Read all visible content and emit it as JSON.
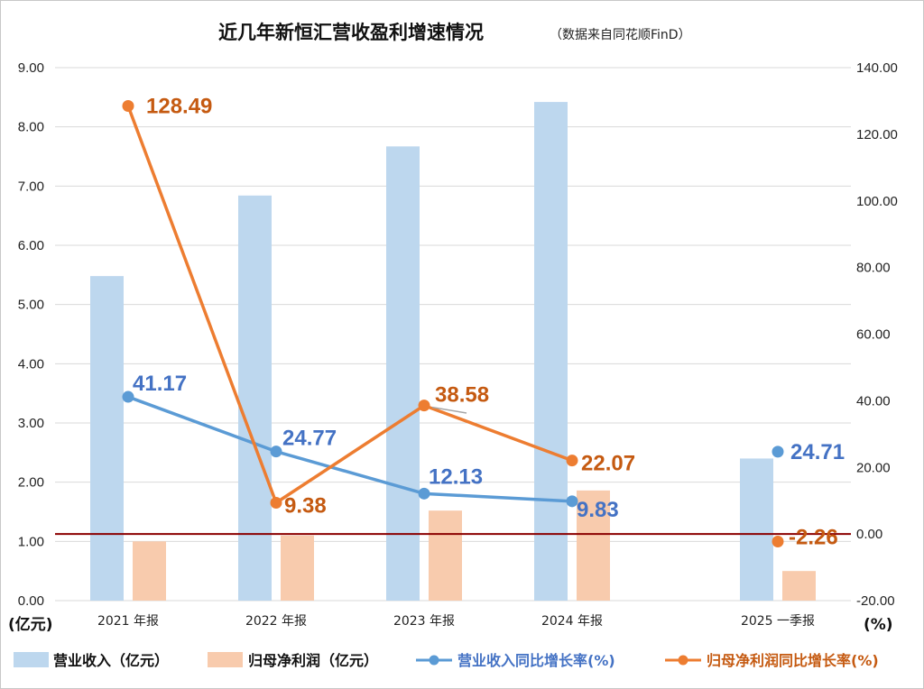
{
  "chart_data": {
    "type": "bar+line",
    "title": "近几年新恒汇营收盈利增速情况",
    "subtitle": "（数据来自同花顺FinD）",
    "categories": [
      "2021 年报",
      "2022 年报",
      "2023 年报",
      "2024 年报",
      "2025 一季报"
    ],
    "bar_series": [
      {
        "name": "营业收入（亿元）",
        "values": [
          5.48,
          6.84,
          7.67,
          8.42,
          2.4
        ],
        "color": "#bdd7ee"
      },
      {
        "name": "归母净利润（亿元）",
        "values": [
          1.0,
          1.1,
          1.52,
          1.86,
          0.5
        ],
        "color": "#f8cbad"
      }
    ],
    "line_series": [
      {
        "name": "营业收入同比增长率(%)",
        "values": [
          41.17,
          24.77,
          12.13,
          9.83,
          24.71
        ],
        "labels": [
          "41.17",
          "24.77",
          "12.13",
          "9.83",
          "24.71"
        ],
        "color": "#5b9bd5",
        "label_color": "#4472c4",
        "connected_points": 4
      },
      {
        "name": "归母净利润同比增长率(%)",
        "values": [
          128.49,
          9.38,
          38.58,
          22.07,
          -2.26
        ],
        "labels": [
          "128.49",
          "9.38",
          "38.58",
          "22.07",
          "-2.26"
        ],
        "color": "#ed7d31",
        "label_color": "#c55a11",
        "connected_points": 4
      }
    ],
    "left_axis": {
      "unit": "(亿元)",
      "ylim": [
        0,
        9
      ],
      "ticks": [
        "0.00",
        "1.00",
        "2.00",
        "3.00",
        "4.00",
        "5.00",
        "6.00",
        "7.00",
        "8.00",
        "9.00"
      ]
    },
    "right_axis": {
      "unit": "(%)",
      "ylim": [
        -20,
        140
      ],
      "ticks": [
        "-20.00",
        "0.00",
        "20.00",
        "40.00",
        "60.00",
        "80.00",
        "100.00",
        "120.00",
        "140.00"
      ]
    },
    "reference_line": {
      "value": 0,
      "axis": "right",
      "color": "#8b0000"
    },
    "grid": true,
    "legend_position": "bottom"
  }
}
